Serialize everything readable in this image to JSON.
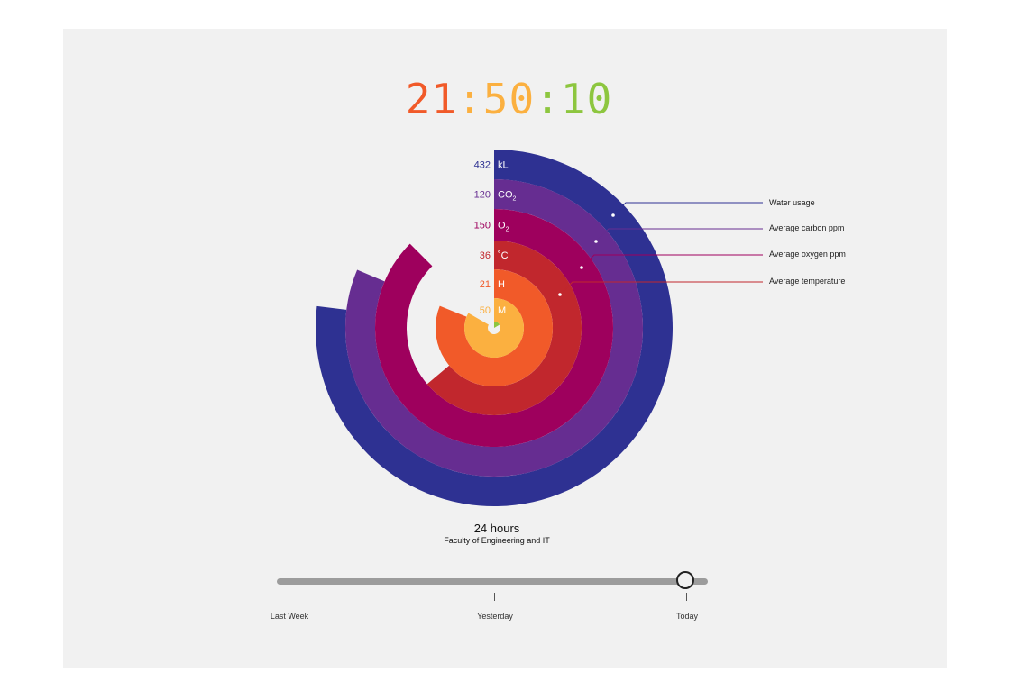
{
  "clock": {
    "hours": "21",
    "sep1": ":",
    "minutes": "50",
    "sep2": ":",
    "seconds": "10",
    "hours_color": "#f15a29",
    "minutes_color": "#fbb040",
    "seconds_color": "#8dc63f"
  },
  "chart_data": {
    "type": "radial-bar",
    "rings": [
      {
        "value": "432",
        "unit": "kL",
        "sub": "",
        "legend": "Water usage",
        "color": "#2e3192",
        "label_color": "#2e3192",
        "sweep_deg": 277
      },
      {
        "value": "120",
        "unit": "CO",
        "sub": "2",
        "legend": "Average carbon ppm",
        "color": "#662d91",
        "label_color": "#662d91",
        "sweep_deg": 293
      },
      {
        "value": "150",
        "unit": "O",
        "sub": "2",
        "legend": "Average oxygen ppm",
        "color": "#9e005d",
        "label_color": "#9e005d",
        "sweep_deg": 315
      },
      {
        "value": "36",
        "unit": "˚C",
        "sub": "",
        "legend": "Average temperature",
        "color": "#c1272d",
        "label_color": "#c1272d",
        "sweep_deg": 230
      },
      {
        "value": "21",
        "unit": "H",
        "sub": "",
        "legend": "",
        "color": "#f15a29",
        "label_color": "#f15a29",
        "sweep_deg": 292
      },
      {
        "value": "50",
        "unit": "M",
        "sub": "",
        "legend": "",
        "color": "#fbb040",
        "label_color": "#fbb040",
        "sweep_deg": 300
      },
      {
        "value": "",
        "unit": "",
        "sub": "",
        "legend": "",
        "color": "#8dc63f",
        "label_color": "#8dc63f",
        "sweep_deg": 60
      }
    ]
  },
  "caption": {
    "title": "24 hours",
    "subtitle": "Faculty of Engineering and IT"
  },
  "timeline": {
    "stops": [
      {
        "label": "Last Week"
      },
      {
        "label": "Yesterday"
      },
      {
        "label": "Today"
      }
    ],
    "selected": "Today",
    "position": 0.955
  }
}
